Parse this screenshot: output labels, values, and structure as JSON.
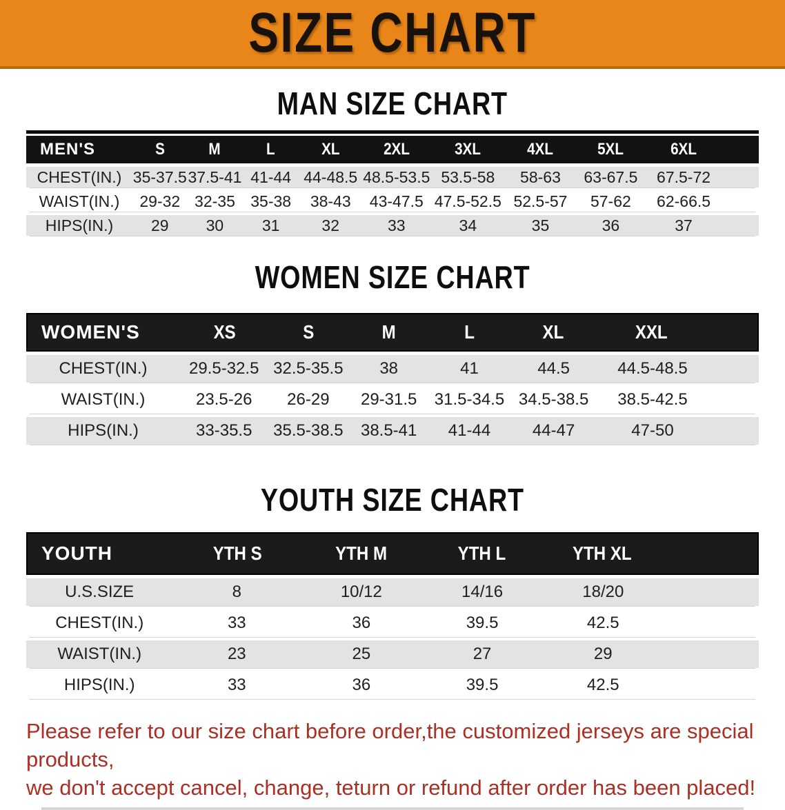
{
  "banner": {
    "title": "SIZE CHART"
  },
  "sections": [
    {
      "heading": "MAN SIZE CHART",
      "table": {
        "corner": "MEN'S",
        "columns": [
          "S",
          "M",
          "L",
          "XL",
          "2XL",
          "3XL",
          "4XL",
          "5XL",
          "6XL"
        ],
        "rows": [
          {
            "label": "CHEST(IN.)",
            "values": [
              "35-37.5",
              "37.5-41",
              "41-44",
              "44-48.5",
              "48.5-53.5",
              "53.5-58",
              "58-63",
              "63-67.5",
              "67.5-72"
            ]
          },
          {
            "label": "WAIST(IN.)",
            "values": [
              "29-32",
              "32-35",
              "35-38",
              "38-43",
              "43-47.5",
              "47.5-52.5",
              "52.5-57",
              "57-62",
              "62-66.5"
            ]
          },
          {
            "label": "HIPS(IN.)",
            "values": [
              "29",
              "30",
              "31",
              "32",
              "33",
              "34",
              "35",
              "36",
              "37"
            ]
          }
        ]
      }
    },
    {
      "heading": "WOMEN SIZE CHART",
      "table": {
        "corner": "WOMEN'S",
        "columns": [
          "XS",
          "S",
          "M",
          "L",
          "XL",
          "XXL"
        ],
        "rows": [
          {
            "label": "CHEST(IN.)",
            "values": [
              "29.5-32.5",
              "32.5-35.5",
              "38",
              "41",
              "44.5",
              "44.5-48.5"
            ]
          },
          {
            "label": "WAIST(IN.)",
            "values": [
              "23.5-26",
              "26-29",
              "29-31.5",
              "31.5-34.5",
              "34.5-38.5",
              "38.5-42.5"
            ]
          },
          {
            "label": "HIPS(IN.)",
            "values": [
              "33-35.5",
              "35.5-38.5",
              "38.5-41",
              "41-44",
              "44-47",
              "47-50"
            ]
          }
        ]
      }
    },
    {
      "heading": "YOUTH SIZE CHART",
      "table": {
        "corner": "YOUTH",
        "columns": [
          "YTH S",
          "YTH M",
          "YTH L",
          "YTH XL"
        ],
        "rows": [
          {
            "label": "U.S.SIZE",
            "values": [
              "8",
              "10/12",
              "14/16",
              "18/20"
            ]
          },
          {
            "label": "CHEST(IN.)",
            "values": [
              "33",
              "36",
              "39.5",
              "42.5"
            ]
          },
          {
            "label": "WAIST(IN.)",
            "values": [
              "23",
              "25",
              "27",
              "29"
            ]
          },
          {
            "label": "HIPS(IN.)",
            "values": [
              "33",
              "36",
              "39.5",
              "42.5"
            ]
          }
        ]
      }
    }
  ],
  "notice": {
    "line1": "Please refer to our size chart before order,the customized jerseys are special products,",
    "line2": "we don't accept cancel, change, teturn or refund after order has been placed!"
  },
  "colors": {
    "banner_orange": "#E8861A",
    "banner_border": "#B96A07",
    "header_black": "#121212",
    "row_gray": "#E3E3E3",
    "notice_red": "#AC2F23"
  }
}
